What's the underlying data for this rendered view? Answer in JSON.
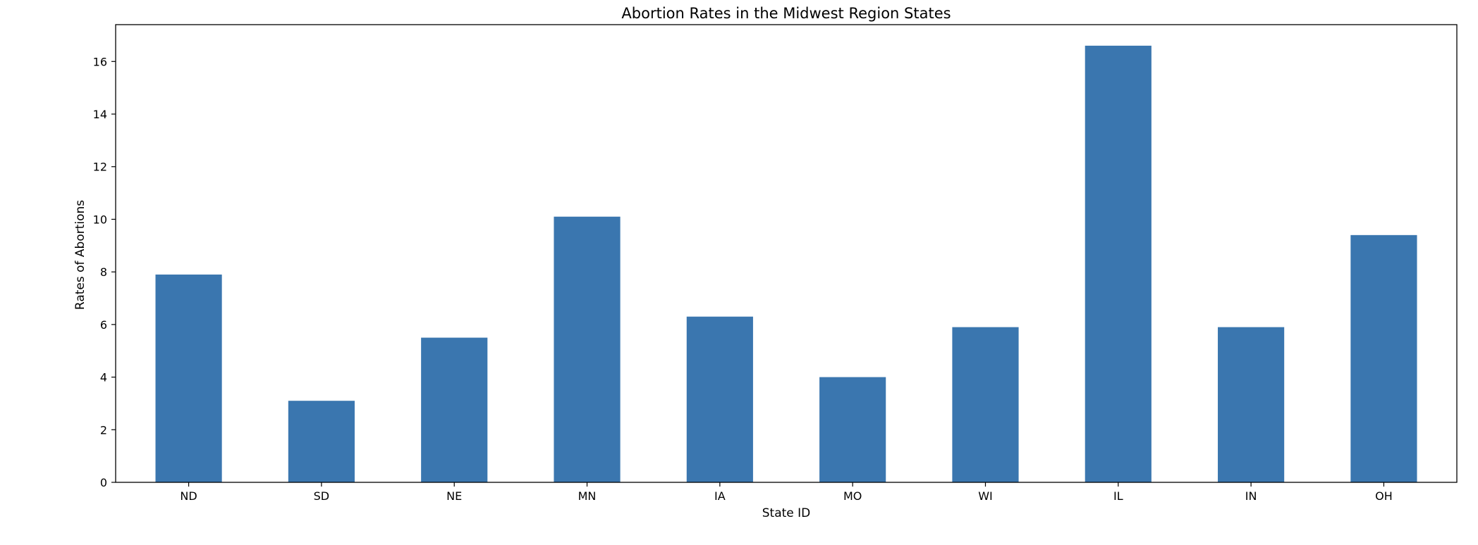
{
  "chart_data": {
    "type": "bar",
    "title": "Abortion Rates in the Midwest Region States",
    "xlabel": "State ID",
    "ylabel": "Rates of Abortions",
    "categories": [
      "ND",
      "SD",
      "NE",
      "MN",
      "IA",
      "MO",
      "WI",
      "IL",
      "IN",
      "OH"
    ],
    "values": [
      7.9,
      3.1,
      5.5,
      10.1,
      6.3,
      4.0,
      5.9,
      16.6,
      5.9,
      9.4
    ],
    "ylim": [
      0,
      17.4
    ],
    "yticks": [
      "0",
      "2",
      "4",
      "6",
      "8",
      "10",
      "12",
      "14",
      "16"
    ],
    "grid": false,
    "legend": "none",
    "bar_color": "#3a76af"
  }
}
